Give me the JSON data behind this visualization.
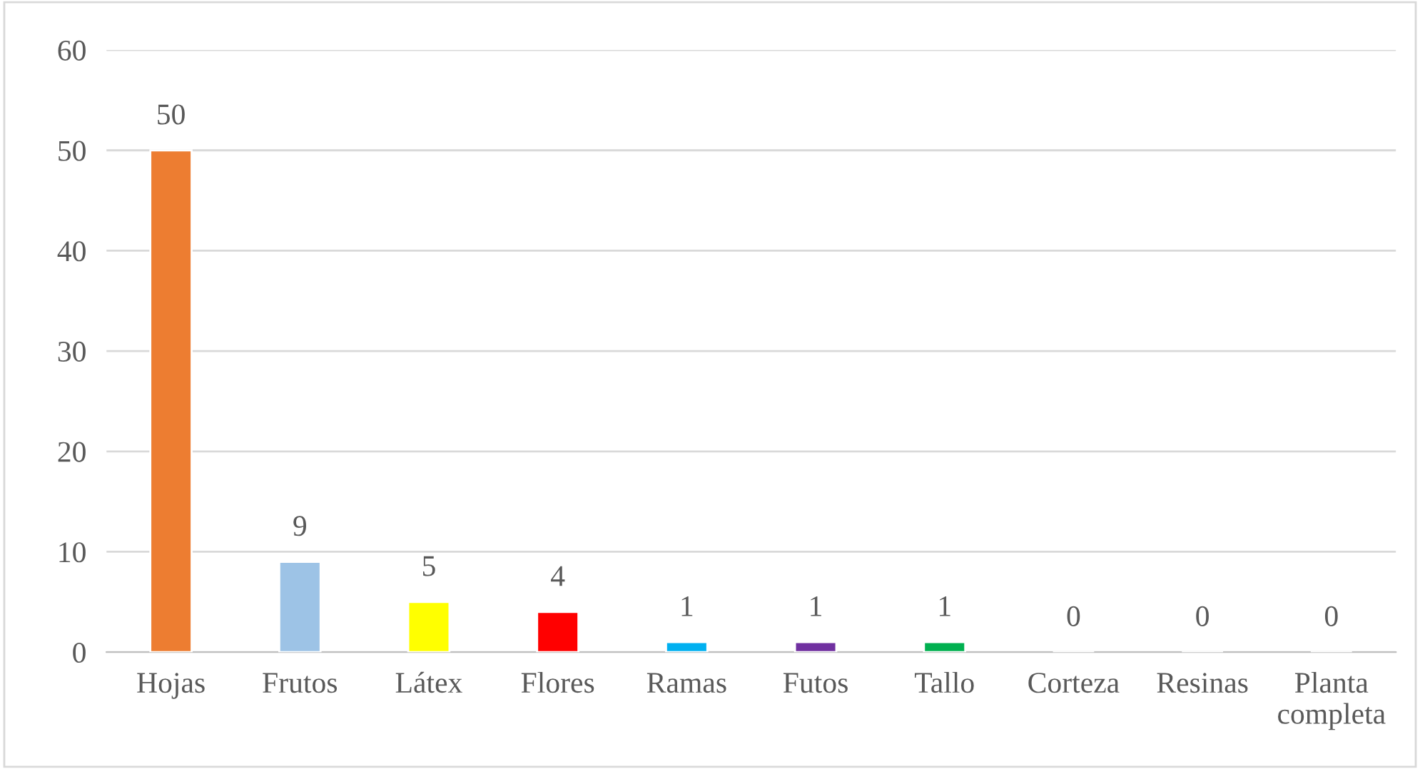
{
  "chart_data": {
    "type": "bar",
    "categories": [
      "Hojas",
      "Frutos",
      "Látex",
      "Flores",
      "Ramas",
      "Futos",
      "Tallo",
      "Corteza",
      "Resinas",
      "Planta completa"
    ],
    "values": [
      50,
      9,
      5,
      4,
      1,
      1,
      1,
      0,
      0,
      0
    ],
    "colors": [
      "#ed7d31",
      "#9dc3e6",
      "#ffff00",
      "#ff0000",
      "#00b0f0",
      "#7030a0",
      "#00b050",
      null,
      null,
      null
    ],
    "ylim": [
      0,
      60
    ],
    "yticks": [
      0,
      10,
      20,
      30,
      40,
      50,
      60
    ],
    "grid": "y",
    "data_labels": true
  }
}
